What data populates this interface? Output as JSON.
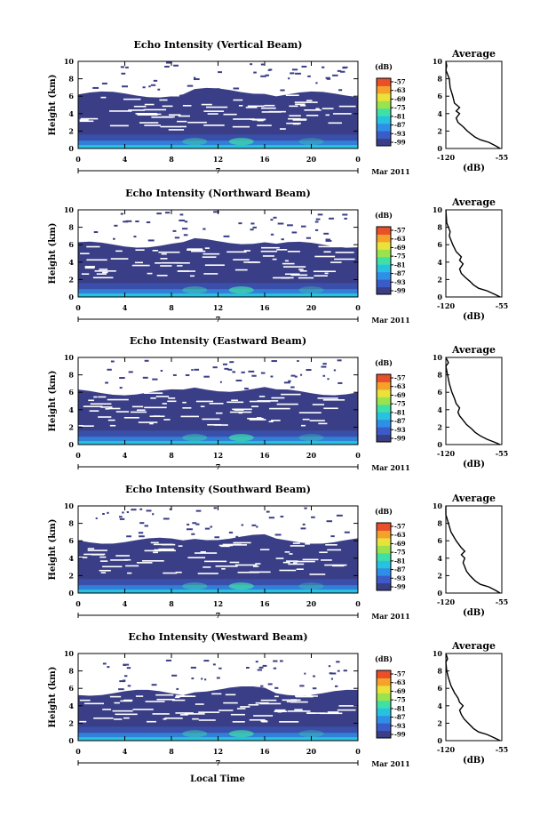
{
  "chart_data": {
    "type": "heatmap",
    "shared": {
      "time_ticks": [
        "0",
        "4",
        "8",
        "12",
        "16",
        "20",
        "0"
      ],
      "date_marker": "7",
      "month_label": "Mar 2011",
      "height_ticks": [
        "0",
        "2",
        "4",
        "6",
        "8",
        "10"
      ],
      "height_label": "Height (km)",
      "xlabel": "Local Time",
      "colorbar_unit": "(dB)",
      "colorbar_ticks": [
        "-57",
        "-63",
        "-69",
        "-75",
        "-81",
        "-87",
        "-93",
        "-99"
      ],
      "colorbar_colors": [
        "#3a3e86",
        "#3b5cc8",
        "#2f8fe6",
        "#27c2e0",
        "#3fe0a8",
        "#9ae34c",
        "#e8e23a",
        "#f5a12a",
        "#e8502a"
      ],
      "average_title": "Average",
      "average_xticks": [
        "-120",
        "-55"
      ],
      "average_xlabel": "(dB)"
    },
    "panels": [
      {
        "title": "Echo Intensity (Vertical Beam)",
        "top_km": 6.2,
        "average_profile": [
          [
            -57,
            0
          ],
          [
            -62,
            0.3
          ],
          [
            -70,
            0.7
          ],
          [
            -80,
            1
          ],
          [
            -86,
            1.3
          ],
          [
            -90,
            1.6
          ],
          [
            -95,
            2
          ],
          [
            -100,
            2.5
          ],
          [
            -106,
            3
          ],
          [
            -108,
            3.5
          ],
          [
            -104,
            4
          ],
          [
            -108,
            4.3
          ],
          [
            -104,
            4.7
          ],
          [
            -110,
            5.2
          ],
          [
            -112,
            6
          ],
          [
            -115,
            7
          ],
          [
            -116,
            8
          ],
          [
            -120,
            9
          ],
          [
            -119,
            9.5
          ],
          [
            -120,
            10
          ]
        ]
      },
      {
        "title": "Echo Intensity (Northward Beam)",
        "top_km": 6.0,
        "average_profile": [
          [
            -57,
            0
          ],
          [
            -63,
            0.3
          ],
          [
            -72,
            0.7
          ],
          [
            -82,
            1
          ],
          [
            -88,
            1.4
          ],
          [
            -92,
            1.8
          ],
          [
            -97,
            2.2
          ],
          [
            -102,
            2.7
          ],
          [
            -104,
            3.2
          ],
          [
            -100,
            3.8
          ],
          [
            -104,
            4.2
          ],
          [
            -102,
            4.6
          ],
          [
            -108,
            5.2
          ],
          [
            -112,
            6
          ],
          [
            -116,
            7
          ],
          [
            -115,
            7.5
          ],
          [
            -119,
            8.5
          ],
          [
            -120,
            10
          ]
        ]
      },
      {
        "title": "Echo Intensity (Eastward Beam)",
        "top_km": 6.0,
        "average_profile": [
          [
            -57,
            0
          ],
          [
            -64,
            0.3
          ],
          [
            -72,
            0.6
          ],
          [
            -80,
            1
          ],
          [
            -86,
            1.4
          ],
          [
            -90,
            1.8
          ],
          [
            -96,
            2.3
          ],
          [
            -100,
            2.8
          ],
          [
            -104,
            3.3
          ],
          [
            -106,
            3.7
          ],
          [
            -104,
            4.2
          ],
          [
            -108,
            4.7
          ],
          [
            -110,
            5.3
          ],
          [
            -113,
            6
          ],
          [
            -116,
            7
          ],
          [
            -118,
            8
          ],
          [
            -120,
            9
          ],
          [
            -117,
            9.4
          ],
          [
            -120,
            10
          ]
        ]
      },
      {
        "title": "Echo Intensity (Southward Beam)",
        "top_km": 6.0,
        "average_profile": [
          [
            -57,
            0
          ],
          [
            -62,
            0.3
          ],
          [
            -70,
            0.7
          ],
          [
            -80,
            1
          ],
          [
            -86,
            1.4
          ],
          [
            -92,
            2
          ],
          [
            -96,
            2.5
          ],
          [
            -98,
            3
          ],
          [
            -100,
            3.5
          ],
          [
            -98,
            4
          ],
          [
            -102,
            4.4
          ],
          [
            -98,
            4.8
          ],
          [
            -102,
            5.2
          ],
          [
            -108,
            6
          ],
          [
            -114,
            7
          ],
          [
            -117,
            8
          ],
          [
            -120,
            9
          ],
          [
            -120,
            10
          ]
        ]
      },
      {
        "title": "Echo Intensity (Westward Beam)",
        "top_km": 5.5,
        "average_profile": [
          [
            -57,
            0
          ],
          [
            -63,
            0.3
          ],
          [
            -72,
            0.7
          ],
          [
            -82,
            1
          ],
          [
            -88,
            1.4
          ],
          [
            -94,
            2
          ],
          [
            -99,
            2.5
          ],
          [
            -102,
            3
          ],
          [
            -104,
            3.5
          ],
          [
            -100,
            4
          ],
          [
            -104,
            4.4
          ],
          [
            -106,
            4.9
          ],
          [
            -110,
            5.5
          ],
          [
            -114,
            6.3
          ],
          [
            -117,
            7.2
          ],
          [
            -119,
            8
          ],
          [
            -120,
            9
          ],
          [
            -118,
            9.4
          ],
          [
            -120,
            10
          ]
        ]
      }
    ]
  }
}
